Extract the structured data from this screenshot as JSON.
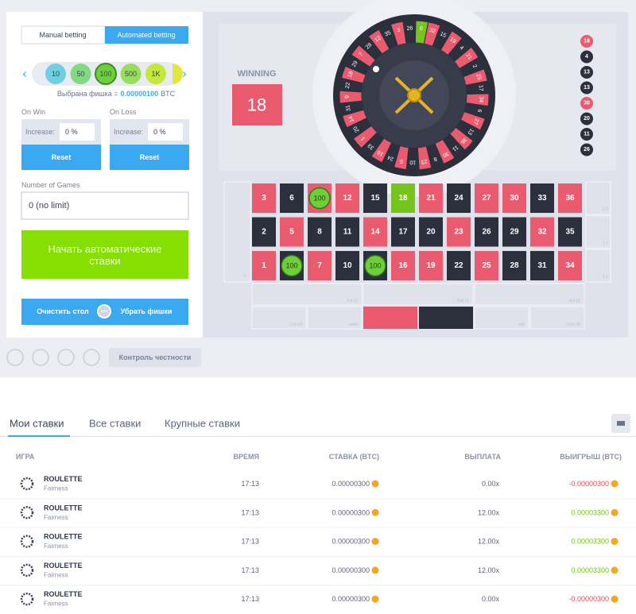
{
  "left": {
    "tabs": [
      "Manual betting",
      "Automated betting"
    ],
    "chips": [
      "10",
      "50",
      "100",
      "500",
      "1K"
    ],
    "selected": {
      "label": "Выбрана фишка =",
      "value": "0.00000100",
      "unit": "BTC"
    },
    "on_win": {
      "label": "On Win",
      "field": "Increase:",
      "value": "0 %",
      "button": "Reset"
    },
    "on_loss": {
      "label": "On Loss",
      "field": "Increase:",
      "value": "0 %",
      "button": "Reset"
    },
    "games": {
      "label": "Number of Games",
      "value": "0 (no limit)"
    },
    "start": "Начать автоматические ставки",
    "clear": "Очистить стол",
    "or": "или",
    "remove": "Убрать фишки",
    "fairness": "Контроль честности"
  },
  "game": {
    "winning_label": "WINNING",
    "winning": "18",
    "history": [
      "18",
      "4",
      "13",
      "13",
      "30",
      "20",
      "11",
      "26"
    ],
    "wheel": [
      "0",
      "32",
      "15",
      "19",
      "4",
      "21",
      "2",
      "25",
      "17",
      "34",
      "6",
      "27",
      "13",
      "36",
      "11",
      "30",
      "8",
      "23",
      "10",
      "5",
      "24",
      "16",
      "33",
      "1",
      "20",
      "14",
      "31",
      "9",
      "22",
      "18",
      "29",
      "7",
      "28",
      "12",
      "35",
      "3",
      "26"
    ],
    "board": [
      [
        "3",
        "6",
        "9",
        "12",
        "15",
        "18",
        "21",
        "24",
        "27",
        "30",
        "33",
        "36"
      ],
      [
        "2",
        "5",
        "8",
        "11",
        "14",
        "17",
        "20",
        "23",
        "26",
        "29",
        "32",
        "35"
      ],
      [
        "1",
        "4",
        "7",
        "10",
        "13",
        "16",
        "19",
        "22",
        "25",
        "28",
        "31",
        "34"
      ]
    ],
    "zero": "0",
    "column_label": "2:1",
    "dozens": [
      "1st 12",
      "2nd 12",
      "3rd 12"
    ],
    "outside": [
      "1 to 18",
      "even",
      "odd",
      "19 to 36"
    ],
    "placed_chips": [
      {
        "cell": "9",
        "label": "100"
      },
      {
        "cell": "4",
        "label": "100"
      },
      {
        "cell": "13",
        "label": "100"
      }
    ]
  },
  "bets": {
    "tabs": [
      "Мои ставки",
      "Все ставки",
      "Крупные ставки"
    ],
    "columns": [
      "ИГРА",
      "ВРЕМЯ",
      "СТАВКА (BTC)",
      "ВЫПЛАТА",
      "ВЫИГРЫШ (BTC)"
    ],
    "rows": [
      {
        "game": "ROULETTE",
        "sub": "Fairness",
        "time": "17:13",
        "bet": "0.00000300",
        "payout": "0.00x",
        "profit": "-0.00000300"
      },
      {
        "game": "ROULETTE",
        "sub": "Fairness",
        "time": "17:13",
        "bet": "0.00000300",
        "payout": "12.00x",
        "profit": "0.00003300"
      },
      {
        "game": "ROULETTE",
        "sub": "Fairness",
        "time": "17:13",
        "bet": "0.00000300",
        "payout": "12.00x",
        "profit": "0.00003300"
      },
      {
        "game": "ROULETTE",
        "sub": "Fairness",
        "time": "17:13",
        "bet": "0.00000300",
        "payout": "12.00x",
        "profit": "0.00003300"
      },
      {
        "game": "ROULETTE",
        "sub": "Fairness",
        "time": "17:13",
        "bet": "0.00000300",
        "payout": "0.00x",
        "profit": "-0.00000300"
      }
    ]
  }
}
